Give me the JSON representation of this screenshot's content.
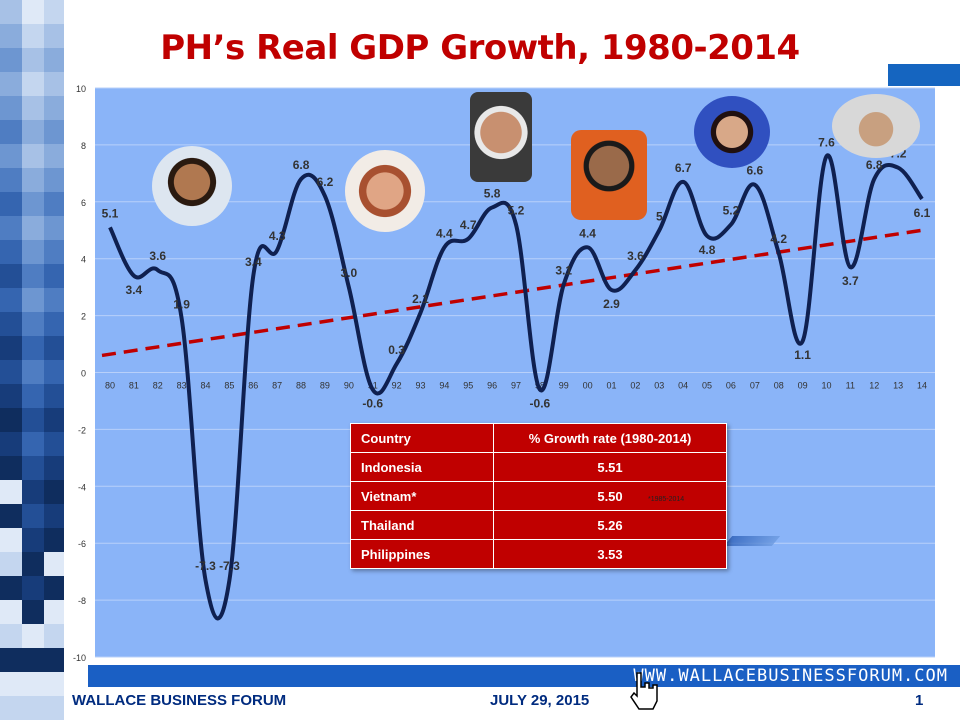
{
  "title": "PH’s Real GDP Growth, 1980-2014",
  "colors": {
    "title": "#c00000",
    "plot_bg": "#8ab4f8",
    "line": "#0f2050",
    "trend": "#c00000",
    "table_bg": "#c00000",
    "footer_text": "#002b7f",
    "footer_band": "#1a5fc4"
  },
  "chart_data": {
    "type": "line",
    "title": "PH’s Real GDP Growth, 1980-2014",
    "xlabel": "",
    "ylabel": "",
    "ylim": [
      -10,
      10
    ],
    "yticks": [
      "10",
      "8",
      "6",
      "4",
      "2",
      "0",
      "-2",
      "-4",
      "-6",
      "-8",
      "-10"
    ],
    "grid": true,
    "categories": [
      "80",
      "81",
      "82",
      "83",
      "84",
      "85",
      "86",
      "87",
      "88",
      "89",
      "90",
      "91",
      "92",
      "93",
      "94",
      "95",
      "96",
      "97",
      "98",
      "99",
      "00",
      "01",
      "02",
      "03",
      "04",
      "05",
      "06",
      "07",
      "08",
      "09",
      "10",
      "11",
      "12",
      "13",
      "14"
    ],
    "series": [
      {
        "values": [
          5.1,
          3.4,
          3.6,
          1.9,
          -7.3,
          -7.3,
          3.4,
          4.3,
          6.8,
          6.2,
          3.0,
          -0.6,
          0.3,
          2.1,
          4.4,
          4.7,
          5.8,
          5.2,
          -0.6,
          3.1,
          4.4,
          2.9,
          3.6,
          5,
          6.7,
          4.8,
          5.2,
          6.6,
          4.2,
          1.1,
          7.6,
          3.7,
          6.8,
          7.2,
          6.1
        ]
      }
    ],
    "data_labels": [
      "5.1",
      "3.4",
      "3.6",
      "1.9",
      "-7.3",
      "-7.3",
      "3.4",
      "4.3",
      "6.8",
      "6.2",
      "3.0",
      "-0.6",
      "0.3",
      "2.1",
      "4.4",
      "4.7",
      "5.8",
      "5.2",
      "-0.6",
      "3.1",
      "4.4",
      "2.9",
      "3.6",
      "5",
      "6.7",
      "4.8",
      "5.2",
      "6.6",
      "4.2",
      "1.1",
      "7.6",
      "3.7",
      "6.8",
      "7.2",
      "6.1"
    ],
    "trendline": {
      "style": "dashed",
      "values": [
        0.6,
        5.0
      ]
    }
  },
  "table": {
    "headers": [
      "Country",
      "% Growth rate (1980-2014)"
    ],
    "rows": [
      [
        "Indonesia",
        "5.51"
      ],
      [
        "Vietnam*",
        "5.50"
      ],
      [
        "Thailand",
        "5.26"
      ],
      [
        "Philippines",
        "3.53"
      ]
    ],
    "note": "*1985-2014"
  },
  "portraits": [
    "portrait-icon",
    "portrait-icon",
    "portrait-icon",
    "portrait-icon",
    "portrait-icon",
    "portrait-icon"
  ],
  "footer": {
    "website": "WWW.WALLACEBUSINESSFORUM.COM",
    "left": "WALLACE BUSINESS FORUM",
    "date": "JULY 29, 2015",
    "page": "1"
  }
}
